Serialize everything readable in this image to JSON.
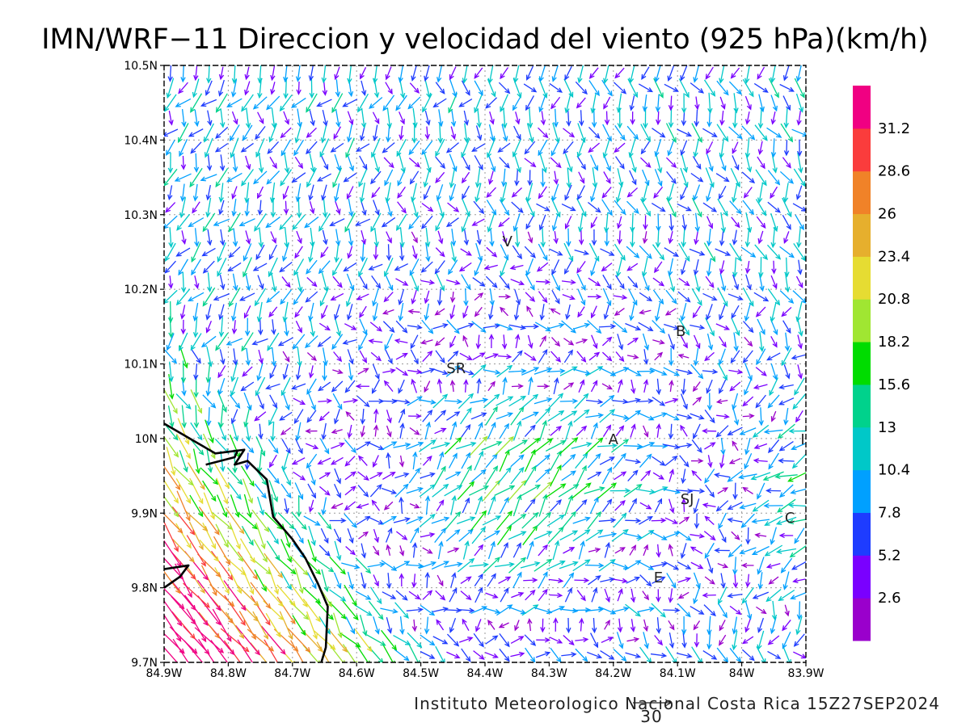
{
  "chart_data": {
    "type": "vector-field",
    "title": "IMN/WRF−11 Direccion y velocidad del viento (925 hPa)(km/h)",
    "credit": "Instituto Meteorologico Nacional Costa Rica  15Z27SEP2024",
    "reference_vector": {
      "label": "30",
      "value": 30
    },
    "xlim": [
      -84.9,
      -83.9
    ],
    "ylim": [
      9.7,
      10.5
    ],
    "x_ticks": [
      {
        "value": -84.9,
        "label": "84.9W"
      },
      {
        "value": -84.8,
        "label": "84.8W"
      },
      {
        "value": -84.7,
        "label": "84.7W"
      },
      {
        "value": -84.6,
        "label": "84.6W"
      },
      {
        "value": -84.5,
        "label": "84.5W"
      },
      {
        "value": -84.4,
        "label": "84.4W"
      },
      {
        "value": -84.3,
        "label": "84.3W"
      },
      {
        "value": -84.2,
        "label": "84.2W"
      },
      {
        "value": -84.1,
        "label": "84.1W"
      },
      {
        "value": -84.0,
        "label": "84W"
      },
      {
        "value": -83.9,
        "label": "83.9W"
      }
    ],
    "y_ticks": [
      {
        "value": 9.7,
        "label": "9.7N"
      },
      {
        "value": 9.8,
        "label": "9.8N"
      },
      {
        "value": 9.9,
        "label": "9.9N"
      },
      {
        "value": 10.0,
        "label": "10N"
      },
      {
        "value": 10.1,
        "label": "10.1N"
      },
      {
        "value": 10.2,
        "label": "10.2N"
      },
      {
        "value": 10.3,
        "label": "10.3N"
      },
      {
        "value": 10.4,
        "label": "10.4N"
      },
      {
        "value": 10.5,
        "label": "10.5N"
      }
    ],
    "grid": true,
    "colorbar": {
      "labels": [
        "2.6",
        "5.2",
        "7.8",
        "10.4",
        "13",
        "15.6",
        "18.2",
        "20.8",
        "23.4",
        "26",
        "28.6",
        "31.2"
      ],
      "colors": [
        "#9a00cc",
        "#7a00ff",
        "#1e3cff",
        "#00a0ff",
        "#00c8c8",
        "#00d28c",
        "#00dc00",
        "#a0e632",
        "#e6dc32",
        "#e6af2d",
        "#f08228",
        "#fa3c3c",
        "#f00082"
      ]
    },
    "places": [
      {
        "label": "V",
        "lon": -84.365,
        "lat": 10.265
      },
      {
        "label": "B",
        "lon": -84.095,
        "lat": 10.145
      },
      {
        "label": "SR",
        "lon": -84.445,
        "lat": 10.095
      },
      {
        "label": "A",
        "lon": -84.2,
        "lat": 10.0
      },
      {
        "label": "I",
        "lon": -83.905,
        "lat": 10.0
      },
      {
        "label": "SJ",
        "lon": -84.085,
        "lat": 9.92
      },
      {
        "label": "C",
        "lon": -83.925,
        "lat": 9.895
      },
      {
        "label": "E",
        "lon": -84.13,
        "lat": 9.815
      }
    ],
    "coastline": [
      [
        -84.9,
        10.02
      ],
      [
        -84.85,
        9.995
      ],
      [
        -84.82,
        9.98
      ],
      [
        -84.775,
        9.985
      ],
      [
        -84.79,
        9.965
      ],
      [
        -84.77,
        9.97
      ],
      [
        -84.74,
        9.945
      ],
      [
        -84.73,
        9.895
      ],
      [
        -84.7,
        9.865
      ],
      [
        -84.68,
        9.84
      ],
      [
        -84.66,
        9.805
      ],
      [
        -84.645,
        9.775
      ],
      [
        -84.648,
        9.72
      ],
      [
        -84.655,
        9.7
      ]
    ],
    "coastline_b": [
      [
        -84.9,
        9.8
      ],
      [
        -84.875,
        9.815
      ],
      [
        -84.862,
        9.83
      ],
      [
        -84.9,
        9.825
      ]
    ],
    "coastline_c": [
      [
        -84.835,
        9.965
      ],
      [
        -84.79,
        9.975
      ],
      [
        -84.785,
        9.985
      ]
    ]
  }
}
